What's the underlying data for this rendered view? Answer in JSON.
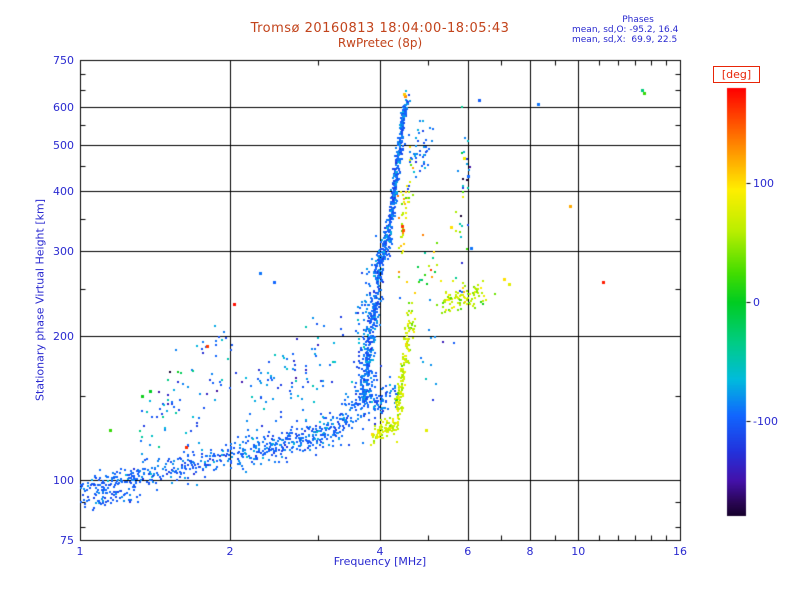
{
  "header": {
    "title": "Tromsø 20160813 18:04:00-18:05:43",
    "subtitle": "RwPretec (8p)"
  },
  "stats": {
    "heading": "Phases",
    "line_o": "mean, sd,O: -95.2, 16.4",
    "line_x": "mean, sd,X:  69.9, 22.5"
  },
  "colorbar": {
    "label": "[deg]",
    "range": [
      -180,
      180
    ],
    "ticks": [
      {
        "value": 100,
        "label": "100"
      },
      {
        "value": 0,
        "label": "0"
      },
      {
        "value": -100,
        "label": "-100"
      }
    ],
    "stops": [
      [
        180,
        "#ff0000"
      ],
      [
        150,
        "#ff5500"
      ],
      [
        120,
        "#ffaa00"
      ],
      [
        95,
        "#ffee00"
      ],
      [
        60,
        "#baee00"
      ],
      [
        25,
        "#44dd00"
      ],
      [
        0,
        "#00cc22"
      ],
      [
        -35,
        "#00cc88"
      ],
      [
        -65,
        "#00bbdd"
      ],
      [
        -95,
        "#1166ff"
      ],
      [
        -125,
        "#2233dd"
      ],
      [
        -150,
        "#4411aa"
      ],
      [
        -168,
        "#2a0655"
      ],
      [
        -180,
        "#15002a"
      ]
    ]
  },
  "axes": {
    "x": {
      "label": "Frequency [MHz]",
      "scale": "log",
      "range": [
        1,
        16
      ],
      "major_ticks": [
        1,
        2,
        4,
        6,
        8,
        10,
        16
      ],
      "grid": [
        2,
        4,
        6,
        8,
        10
      ],
      "minor_ticks": [
        3,
        5,
        7,
        9,
        11,
        12,
        13,
        14,
        15
      ]
    },
    "y": {
      "label": "Stationary phase Virtual Height [km]",
      "scale": "log",
      "range": [
        75,
        750
      ],
      "major_ticks": [
        75,
        100,
        200,
        300,
        400,
        500,
        600,
        750
      ],
      "grid": [
        100,
        200,
        300,
        400,
        500,
        600
      ],
      "minor_ticks": [
        80,
        90,
        150,
        250,
        350,
        450,
        550,
        650,
        700
      ]
    }
  },
  "colors": {
    "background": "#ffffff",
    "title": "#c2441c",
    "axis_text": "#2a2ad0",
    "deg_label": "#e82508",
    "grid": "#000000"
  },
  "chart_data": {
    "type": "scatter",
    "title": "Tromsø 20160813 18:04:00-18:05:43",
    "subtitle": "RwPretec (8p)",
    "xlabel": "Frequency [MHz]",
    "ylabel": "Stationary phase Virtual Height [km]",
    "xscale": "log",
    "yscale": "log",
    "xlim": [
      1,
      16
    ],
    "ylim": [
      75,
      750
    ],
    "grid": true,
    "color_dimension": "phase [deg]",
    "color_range": [
      -180,
      180
    ],
    "series_stats": {
      "O_mode": {
        "mean_phase": -95.2,
        "sd_phase": 16.4
      },
      "X_mode": {
        "mean_phase": 69.9,
        "sd_phase": 22.5
      }
    },
    "clusters": [
      {
        "n": 130,
        "f": [
          1.0,
          1.32
        ],
        "h": [
          97,
          101
        ],
        "fj": 0.012,
        "hj": 0.03,
        "ph": -95,
        "psd": 10
      },
      {
        "n": 50,
        "f": [
          1.02,
          1.3
        ],
        "h": [
          90,
          93
        ],
        "fj": 0.015,
        "hj": 0.02,
        "ph": -100,
        "psd": 12
      },
      {
        "n": 150,
        "f": [
          1.3,
          1.95
        ],
        "h": [
          101,
          112
        ],
        "fj": 0.015,
        "hj": 0.035,
        "ph": -95,
        "psd": 14
      },
      {
        "n": 150,
        "f": [
          1.95,
          2.6
        ],
        "h": [
          112,
          119
        ],
        "fj": 0.012,
        "hj": 0.035,
        "ph": -95,
        "psd": 14
      },
      {
        "n": 170,
        "f": [
          2.6,
          3.35
        ],
        "h": [
          119,
          130
        ],
        "fj": 0.012,
        "hj": 0.04,
        "ph": -95,
        "psd": 14
      },
      {
        "n": 130,
        "f": [
          3.35,
          3.9
        ],
        "h": [
          130,
          158
        ],
        "fj": 0.01,
        "hj": 0.05,
        "ph": -95,
        "psd": 14
      },
      {
        "n": 60,
        "f": [
          3.85,
          4.3
        ],
        "h": [
          140,
          152
        ],
        "fj": 0.012,
        "hj": 0.035,
        "ph": -95,
        "psd": 14
      },
      {
        "n": 230,
        "f": [
          3.7,
          3.98
        ],
        "h": [
          150,
          268
        ],
        "fj": 0.008,
        "hj": 0.07,
        "ph": -95,
        "psd": 13
      },
      {
        "n": 120,
        "f": [
          3.62,
          3.95
        ],
        "h": [
          175,
          250
        ],
        "fj": 0.02,
        "hj": 0.12,
        "ph": -92,
        "psd": 16
      },
      {
        "n": 140,
        "f": [
          3.97,
          4.18
        ],
        "h": [
          268,
          332
        ],
        "fj": 0.007,
        "hj": 0.05,
        "ph": -95,
        "psd": 13
      },
      {
        "n": 280,
        "f": [
          4.18,
          4.45
        ],
        "h": [
          332,
          560
        ],
        "fj": 0.006,
        "hj": 0.04,
        "ph": -95,
        "psd": 13
      },
      {
        "n": 70,
        "f": [
          4.42,
          4.55
        ],
        "h": [
          555,
          622
        ],
        "fj": 0.005,
        "hj": 0.02,
        "ph": -95,
        "psd": 14
      },
      {
        "n": 90,
        "f": [
          2.2,
          3.25
        ],
        "h": [
          140,
          190
        ],
        "fj": 0.05,
        "hj": 0.1,
        "ph": -90,
        "psd": 25
      },
      {
        "n": 45,
        "f": [
          1.33,
          1.62
        ],
        "h": [
          122,
          158
        ],
        "fj": 0.04,
        "hj": 0.09,
        "ph": -80,
        "psd": 40
      },
      {
        "n": 25,
        "f": [
          1.68,
          2.0
        ],
        "h": [
          128,
          175
        ],
        "fj": 0.04,
        "hj": 0.08,
        "ph": -90,
        "psd": 25
      },
      {
        "n": 12,
        "f": [
          1.75,
          1.95
        ],
        "h": [
          185,
          205
        ],
        "fj": 0.03,
        "hj": 0.03,
        "ph": -95,
        "psd": 20
      },
      {
        "n": 90,
        "f": [
          3.85,
          4.3
        ],
        "h": [
          123,
          131
        ],
        "fj": 0.01,
        "hj": 0.02,
        "ph": 72,
        "psd": 12
      },
      {
        "n": 130,
        "f": [
          4.3,
          4.56
        ],
        "h": [
          131,
          196
        ],
        "fj": 0.006,
        "hj": 0.05,
        "ph": 70,
        "psd": 15
      },
      {
        "n": 35,
        "f": [
          4.5,
          4.68
        ],
        "h": [
          196,
          218
        ],
        "fj": 0.008,
        "hj": 0.04,
        "ph": 70,
        "psd": 18
      },
      {
        "n": 95,
        "f": [
          5.3,
          6.5
        ],
        "h": [
          232,
          248
        ],
        "fj": 0.02,
        "hj": 0.03,
        "ph": 65,
        "psd": 20
      },
      {
        "n": 45,
        "f": [
          4.38,
          4.62
        ],
        "h": [
          320,
          430
        ],
        "fj": 0.01,
        "hj": 0.08,
        "ph": 80,
        "psd": 30
      },
      {
        "n": 45,
        "f": [
          4.5,
          4.95
        ],
        "h": [
          430,
          520
        ],
        "fj": 0.02,
        "hj": 0.06,
        "ph": -95,
        "psd": 15
      },
      {
        "n": 30,
        "f": [
          5.7,
          6.05
        ],
        "h": [
          300,
          500
        ],
        "fj": 0.015,
        "hj": 0.15,
        "ph": -60,
        "psd": 80
      },
      {
        "n": 22,
        "f": [
          4.6,
          5.15
        ],
        "h": [
          245,
          295
        ],
        "fj": 0.03,
        "hj": 0.06,
        "ph": 40,
        "psd": 50
      },
      {
        "n": 12,
        "f": [
          4.75,
          5.3
        ],
        "h": [
          150,
          200
        ],
        "fj": 0.04,
        "hj": 0.08,
        "ph": -90,
        "psd": 20
      }
    ],
    "outliers": [
      [
        6.32,
        618,
        -100
      ],
      [
        8.3,
        606,
        -90
      ],
      [
        13.4,
        648,
        -30
      ],
      [
        13.55,
        640,
        20
      ],
      [
        11.2,
        258,
        170
      ],
      [
        9.62,
        372,
        120
      ],
      [
        7.1,
        262,
        100
      ],
      [
        7.25,
        256,
        80
      ],
      [
        2.04,
        233,
        175
      ],
      [
        1.8,
        190,
        160
      ],
      [
        1.63,
        117,
        165
      ],
      [
        4.5,
        632,
        130
      ],
      [
        4.46,
        636,
        110
      ],
      [
        4.42,
        338,
        160
      ],
      [
        4.45,
        332,
        150
      ],
      [
        5.9,
        468,
        90
      ],
      [
        6.0,
        430,
        -95
      ],
      [
        5.55,
        336,
        100
      ],
      [
        6.1,
        304,
        -90
      ],
      [
        2.45,
        258,
        -95
      ],
      [
        2.3,
        270,
        -90
      ],
      [
        1.33,
        150,
        5
      ],
      [
        1.38,
        153,
        0
      ],
      [
        1.15,
        127,
        20
      ],
      [
        4.95,
        127,
        80
      ]
    ]
  }
}
